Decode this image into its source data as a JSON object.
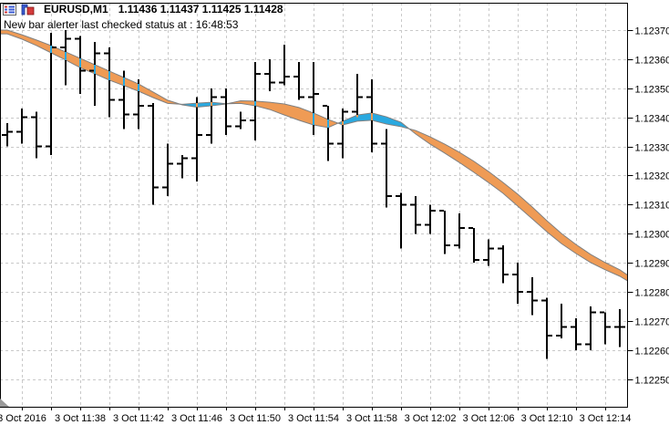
{
  "header": {
    "symbol": "EURUSD,M1",
    "quote": "1.11436 1.11437 1.11425 1.11428",
    "icons": [
      "data-window-icon",
      "bar-chart-icon"
    ]
  },
  "comment": "New bar alerter last checked status at : 16:48:53",
  "colors": {
    "bear_fill": "#EF9B55",
    "bull_fill": "#2AA9E0",
    "ribbon_edge": "#808080",
    "bar": "#000000",
    "grid": "#c9c9c9",
    "axis": "#000000",
    "background": "#ffffff",
    "corner_marker": "#9a9a9a",
    "icon_red": "#d43b3b",
    "icon_blue": "#3b5bd4"
  },
  "chart_data": {
    "type": "bar",
    "subtype": "ohlc-bars-with-ma-ribbon",
    "symbol": "EURUSD",
    "timeframe": "M1",
    "grid": true,
    "y_axis": {
      "side": "right",
      "min": 1.1225,
      "max": 1.1237,
      "tick_step": 0.0001,
      "labels": [
        "1.12370",
        "1.12360",
        "1.12350",
        "1.12340",
        "1.12330",
        "1.12320",
        "1.12310",
        "1.12300",
        "1.12290",
        "1.12280",
        "1.12270",
        "1.12260",
        "1.12250"
      ]
    },
    "x_axis": {
      "side": "bottom",
      "labels": [
        {
          "bar_index": 1,
          "text": "3 Oct 2016"
        },
        {
          "bar_index": 5,
          "text": "3 Oct 11:38"
        },
        {
          "bar_index": 9,
          "text": "3 Oct 11:42"
        },
        {
          "bar_index": 13,
          "text": "3 Oct 11:46"
        },
        {
          "bar_index": 17,
          "text": "3 Oct 11:50"
        },
        {
          "bar_index": 21,
          "text": "3 Oct 11:54"
        },
        {
          "bar_index": 25,
          "text": "3 Oct 11:58"
        },
        {
          "bar_index": 29,
          "text": "3 Oct 12:02"
        },
        {
          "bar_index": 33,
          "text": "3 Oct 12:06"
        },
        {
          "bar_index": 37,
          "text": "3 Oct 12:10"
        },
        {
          "bar_index": 41,
          "text": "3 Oct 12:14"
        }
      ],
      "gridline_every_bars": 2,
      "first_gridline_index": 1
    },
    "bars": [
      {
        "t": "11:33",
        "o": 1.12334,
        "h": 1.12338,
        "l": 1.1233,
        "c": 1.12335
      },
      {
        "t": "11:34",
        "o": 1.12335,
        "h": 1.12343,
        "l": 1.12331,
        "c": 1.1234
      },
      {
        "t": "11:35",
        "o": 1.1234,
        "h": 1.12342,
        "l": 1.12326,
        "c": 1.1233
      },
      {
        "t": "11:36",
        "o": 1.1233,
        "h": 1.12369,
        "l": 1.12327,
        "c": 1.12364
      },
      {
        "t": "11:37",
        "o": 1.12364,
        "h": 1.1237,
        "l": 1.12351,
        "c": 1.12367
      },
      {
        "t": "11:38",
        "o": 1.12367,
        "h": 1.12368,
        "l": 1.12348,
        "c": 1.12356
      },
      {
        "t": "11:39",
        "o": 1.12356,
        "h": 1.12366,
        "l": 1.12344,
        "c": 1.12362
      },
      {
        "t": "11:40",
        "o": 1.12362,
        "h": 1.12364,
        "l": 1.1234,
        "c": 1.12346
      },
      {
        "t": "11:41",
        "o": 1.12346,
        "h": 1.12356,
        "l": 1.12336,
        "c": 1.12341
      },
      {
        "t": "11:42",
        "o": 1.12341,
        "h": 1.12353,
        "l": 1.12336,
        "c": 1.12344
      },
      {
        "t": "11:43",
        "o": 1.12344,
        "h": 1.12345,
        "l": 1.1231,
        "c": 1.12316
      },
      {
        "t": "11:44",
        "o": 1.12316,
        "h": 1.12331,
        "l": 1.12313,
        "c": 1.12324
      },
      {
        "t": "11:45",
        "o": 1.12324,
        "h": 1.12327,
        "l": 1.12319,
        "c": 1.12326
      },
      {
        "t": "11:46",
        "o": 1.12326,
        "h": 1.12347,
        "l": 1.12318,
        "c": 1.12334
      },
      {
        "t": "11:47",
        "o": 1.12334,
        "h": 1.1235,
        "l": 1.12331,
        "c": 1.12347
      },
      {
        "t": "11:48",
        "o": 1.12347,
        "h": 1.1235,
        "l": 1.12334,
        "c": 1.12337
      },
      {
        "t": "11:49",
        "o": 1.12337,
        "h": 1.12342,
        "l": 1.12336,
        "c": 1.12339
      },
      {
        "t": "11:50",
        "o": 1.12339,
        "h": 1.12359,
        "l": 1.12332,
        "c": 1.12355
      },
      {
        "t": "11:51",
        "o": 1.12355,
        "h": 1.1236,
        "l": 1.12349,
        "c": 1.12352
      },
      {
        "t": "11:52",
        "o": 1.12352,
        "h": 1.12365,
        "l": 1.12351,
        "c": 1.12354
      },
      {
        "t": "11:53",
        "o": 1.12354,
        "h": 1.12359,
        "l": 1.12346,
        "c": 1.12347
      },
      {
        "t": "11:54",
        "o": 1.12347,
        "h": 1.12359,
        "l": 1.12334,
        "c": 1.12348
      },
      {
        "t": "11:55",
        "o": 1.12344,
        "h": 1.12344,
        "l": 1.12325,
        "c": 1.12331
      },
      {
        "t": "11:56",
        "o": 1.12331,
        "h": 1.12343,
        "l": 1.12326,
        "c": 1.12342
      },
      {
        "t": "11:57",
        "o": 1.12342,
        "h": 1.12355,
        "l": 1.1234,
        "c": 1.12347
      },
      {
        "t": "11:58",
        "o": 1.12347,
        "h": 1.12353,
        "l": 1.12328,
        "c": 1.12331
      },
      {
        "t": "11:59",
        "o": 1.12331,
        "h": 1.12336,
        "l": 1.12309,
        "c": 1.12313
      },
      {
        "t": "12:00",
        "o": 1.12313,
        "h": 1.12314,
        "l": 1.12295,
        "c": 1.1231
      },
      {
        "t": "12:01",
        "o": 1.1231,
        "h": 1.12313,
        "l": 1.123,
        "c": 1.12303
      },
      {
        "t": "12:02",
        "o": 1.12303,
        "h": 1.1231,
        "l": 1.123,
        "c": 1.12308
      },
      {
        "t": "12:03",
        "o": 1.12308,
        "h": 1.12308,
        "l": 1.12293,
        "c": 1.12296
      },
      {
        "t": "12:04",
        "o": 1.12296,
        "h": 1.12307,
        "l": 1.12295,
        "c": 1.12302
      },
      {
        "t": "12:05",
        "o": 1.12302,
        "h": 1.12302,
        "l": 1.1229,
        "c": 1.12291
      },
      {
        "t": "12:06",
        "o": 1.12291,
        "h": 1.12298,
        "l": 1.12289,
        "c": 1.12295
      },
      {
        "t": "12:07",
        "o": 1.12295,
        "h": 1.12296,
        "l": 1.12283,
        "c": 1.12286
      },
      {
        "t": "12:08",
        "o": 1.12286,
        "h": 1.1229,
        "l": 1.12276,
        "c": 1.1228
      },
      {
        "t": "12:09",
        "o": 1.1228,
        "h": 1.12285,
        "l": 1.12272,
        "c": 1.12277
      },
      {
        "t": "12:10",
        "o": 1.12277,
        "h": 1.12278,
        "l": 1.12257,
        "c": 1.12265
      },
      {
        "t": "12:11",
        "o": 1.12265,
        "h": 1.12276,
        "l": 1.12264,
        "c": 1.12268
      },
      {
        "t": "12:12",
        "o": 1.12268,
        "h": 1.12271,
        "l": 1.1226,
        "c": 1.12262
      },
      {
        "t": "12:13",
        "o": 1.12262,
        "h": 1.12275,
        "l": 1.1226,
        "c": 1.12273
      },
      {
        "t": "12:14",
        "o": 1.12273,
        "h": 1.12273,
        "l": 1.12262,
        "c": 1.12268
      },
      {
        "t": "12:15",
        "o": 1.12268,
        "h": 1.12274,
        "l": 1.12261,
        "c": 1.12268
      }
    ],
    "ribbon": {
      "note": "fill between fast and slow MA; orange when fast<slow, blue when fast>slow; last value extends to price axis",
      "fast": [
        1.123687,
        1.123669,
        1.123647,
        1.123622,
        1.123597,
        1.123571,
        1.12355,
        1.123528,
        1.123509,
        1.12349,
        1.123468,
        1.123448,
        1.123445,
        1.123449,
        1.123452,
        1.123447,
        1.123448,
        1.12344,
        1.123427,
        1.123408,
        1.12339,
        1.123374,
        1.123365,
        1.123387,
        1.123408,
        1.123415,
        1.123402,
        1.123383,
        1.123343,
        1.123308,
        1.123277,
        1.123245,
        1.123211,
        1.123176,
        1.123139,
        1.123095,
        1.123051,
        1.123007,
        1.122966,
        1.122932,
        1.122901,
        1.122876,
        1.122854,
        1.122838
      ],
      "slow": [
        1.1237,
        1.123684,
        1.123666,
        1.123647,
        1.123625,
        1.123603,
        1.123581,
        1.123559,
        1.123537,
        1.123515,
        1.123487,
        1.123459,
        1.123443,
        1.123435,
        1.12344,
        1.123446,
        1.123457,
        1.123456,
        1.123452,
        1.123446,
        1.123434,
        1.123415,
        1.123393,
        1.123374,
        1.123387,
        1.12339,
        1.123377,
        1.123368,
        1.123355,
        1.123333,
        1.123308,
        1.12328,
        1.123249,
        1.123214,
        1.123176,
        1.123136,
        1.123092,
        1.123045,
        1.123001,
        1.122963,
        1.122929,
        1.122901,
        1.122876,
        1.122858
      ]
    }
  }
}
